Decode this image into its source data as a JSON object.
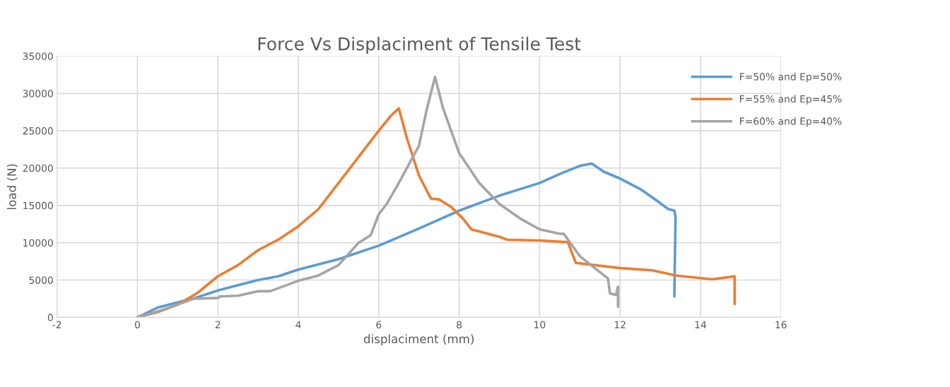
{
  "chart_data": {
    "type": "line",
    "title": "Force Vs Displaciment of Tensile Test",
    "xlabel": "displaciment (mm)",
    "ylabel": "load (N)",
    "xlim": [
      -2,
      16
    ],
    "xticks": [
      -2,
      0,
      2,
      4,
      6,
      8,
      10,
      12,
      14,
      16
    ],
    "ylim": [
      0,
      35000
    ],
    "yticks": [
      0,
      5000,
      10000,
      15000,
      20000,
      25000,
      30000,
      35000
    ],
    "grid": true,
    "legend": "top right",
    "marker": "none",
    "line_style": "solid",
    "series": [
      {
        "name": "F=50% and Ep=50%",
        "color": "#5b9bd5",
        "x": [
          0,
          0.5,
          1,
          1.5,
          2,
          3,
          3.5,
          4,
          5,
          6,
          7,
          8,
          9,
          10,
          10.5,
          11,
          11.3,
          11.6,
          12,
          12.5,
          12.9,
          13.2,
          13.35,
          13.38,
          13.35
        ],
        "values": [
          0,
          1300,
          2000,
          2700,
          3600,
          5000,
          5500,
          6400,
          7800,
          9600,
          11900,
          14300,
          16300,
          18000,
          19200,
          20300,
          20600,
          19500,
          18600,
          17200,
          15700,
          14500,
          14300,
          13500,
          2800
        ]
      },
      {
        "name": "F=55% and Ep=45%",
        "color": "#ed7d31",
        "x": [
          0,
          0.5,
          1,
          1.5,
          2,
          2.5,
          3,
          3.5,
          4,
          4.5,
          5,
          5.5,
          6,
          6.3,
          6.5,
          6.7,
          7,
          7.3,
          7.5,
          7.8,
          8.1,
          8.3,
          9,
          9.2,
          10,
          10.6,
          10.7,
          10.9,
          11.2,
          12,
          12.8,
          13.4,
          14.3,
          14.85,
          14.85
        ],
        "values": [
          0,
          700,
          1700,
          3300,
          5500,
          7000,
          9000,
          10400,
          12200,
          14500,
          18000,
          21500,
          25000,
          27000,
          28000,
          24000,
          19000,
          15900,
          15800,
          14800,
          13200,
          11800,
          10800,
          10400,
          10300,
          10100,
          10100,
          7300,
          7100,
          6600,
          6300,
          5600,
          5100,
          5500,
          1800
        ]
      },
      {
        "name": "F=60% and Ep=40%",
        "color": "#a5a5a5",
        "x": [
          0,
          0.5,
          1,
          1.4,
          2,
          2.05,
          2.5,
          3,
          3.3,
          4,
          4.5,
          5,
          5.3,
          5.5,
          5.8,
          6,
          6.2,
          6.5,
          6.8,
          7,
          7.2,
          7.4,
          7.6,
          8,
          8.5,
          9,
          9.5,
          10,
          10.5,
          10.6,
          11,
          11.3,
          11.7,
          11.75,
          11.9,
          11.95,
          11.95
        ],
        "values": [
          0,
          800,
          1700,
          2500,
          2600,
          2800,
          2900,
          3500,
          3500,
          4900,
          5600,
          7000,
          8800,
          10000,
          11000,
          13800,
          15200,
          18000,
          21000,
          23000,
          28000,
          32200,
          28000,
          22000,
          18000,
          15200,
          13300,
          11800,
          11200,
          11200,
          8200,
          6900,
          5200,
          3200,
          3000,
          4100,
          1400
        ]
      }
    ]
  }
}
